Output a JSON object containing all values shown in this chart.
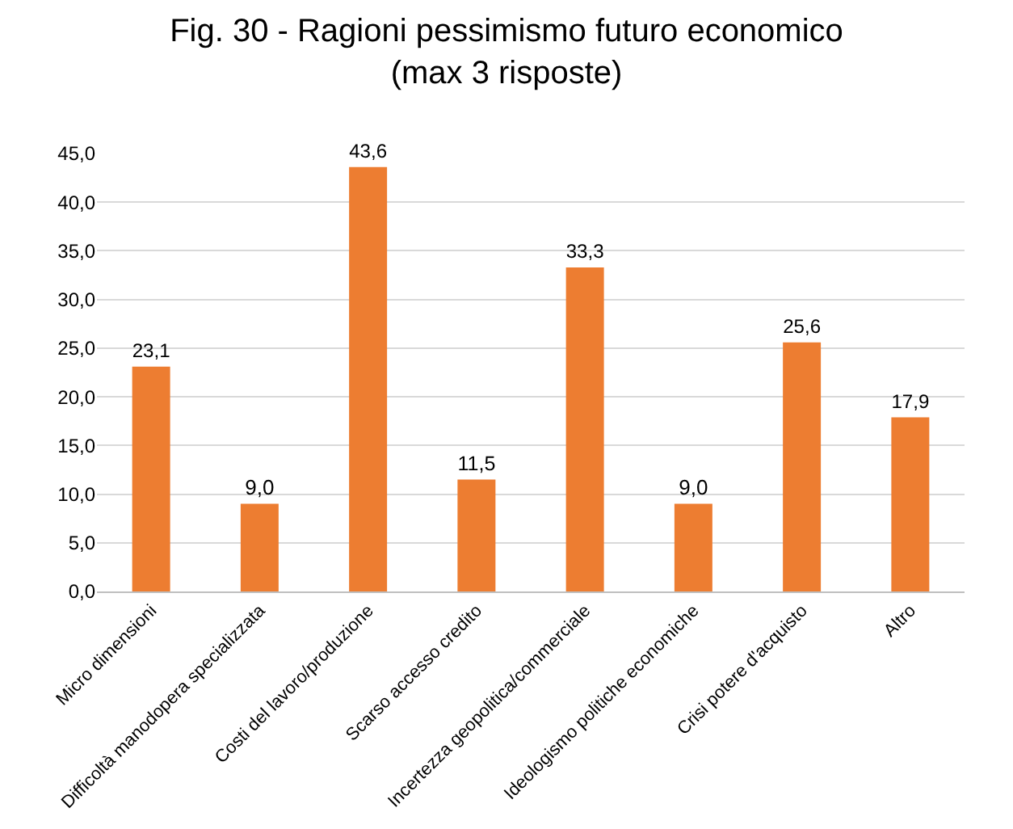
{
  "chart_data": {
    "type": "bar",
    "title": "Fig. 30 - Ragioni pessimismo futuro economico\n(max 3 risposte)",
    "categories": [
      "Micro dimensioni",
      "Difficoltà manodopera specializzata",
      "Costi del lavoro/produzione",
      "Scarso accesso credito",
      "Incertezza geopolitica/commerciale",
      "Ideologismo politiche economiche",
      "Crisi potere d'acquisto",
      "Altro"
    ],
    "values": [
      23.1,
      9.0,
      43.6,
      11.5,
      33.3,
      9.0,
      25.6,
      17.9
    ],
    "value_labels": [
      "23,1",
      "9,0",
      "43,6",
      "11,5",
      "33,3",
      "9,0",
      "25,6",
      "17,9"
    ],
    "color": "#ed7d31",
    "ylim": [
      0,
      45
    ],
    "yticks": [
      {
        "value": 0,
        "label": "0,0"
      },
      {
        "value": 5,
        "label": "5,0"
      },
      {
        "value": 10,
        "label": "10,0"
      },
      {
        "value": 15,
        "label": "15,0"
      },
      {
        "value": 20,
        "label": "20,0"
      },
      {
        "value": 25,
        "label": "25,0"
      },
      {
        "value": 30,
        "label": "30,0"
      },
      {
        "value": 35,
        "label": "35,0"
      },
      {
        "value": 40,
        "label": "40,0"
      },
      {
        "value": 45,
        "label": "45,0"
      }
    ],
    "grid": "y"
  }
}
